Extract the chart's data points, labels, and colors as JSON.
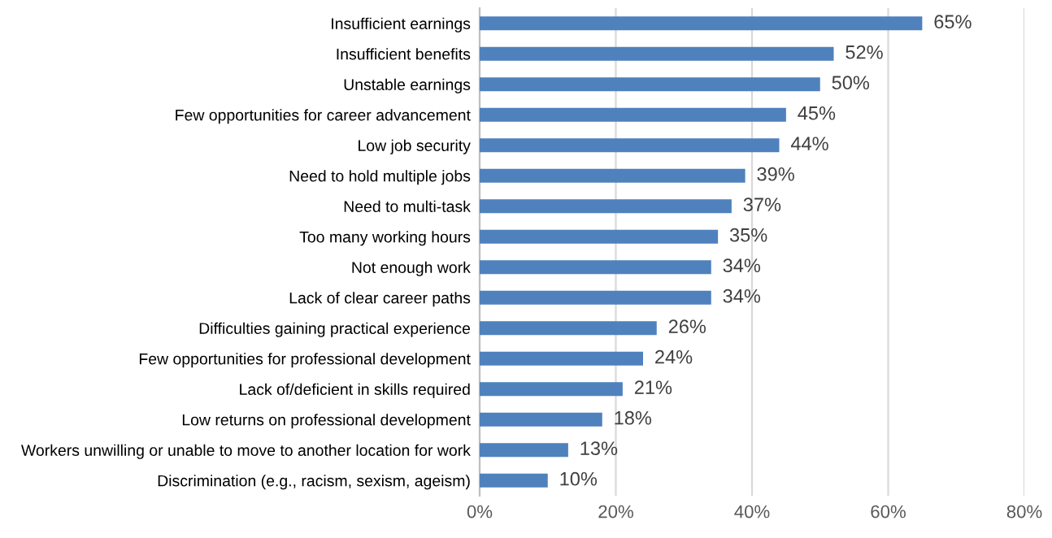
{
  "chart_data": {
    "type": "bar",
    "orientation": "horizontal",
    "categories": [
      "Insufficient earnings",
      "Insufficient benefits",
      "Unstable earnings",
      "Few opportunities for career advancement",
      "Low job security",
      "Need to hold multiple jobs",
      "Need to multi-task",
      "Too many working hours",
      "Not enough work",
      "Lack of clear career paths",
      "Difficulties gaining practical experience",
      "Few opportunities for professional development",
      "Lack of/deficient in skills required",
      "Low returns on professional development",
      "Workers unwilling or unable to move to another location for work",
      "Discrimination (e.g., racism, sexism, ageism)"
    ],
    "values": [
      65,
      52,
      50,
      45,
      44,
      39,
      37,
      35,
      34,
      34,
      26,
      24,
      21,
      18,
      13,
      10
    ],
    "value_labels": [
      "65%",
      "52%",
      "50%",
      "45%",
      "44%",
      "39%",
      "37%",
      "35%",
      "34%",
      "34%",
      "26%",
      "24%",
      "21%",
      "18%",
      "13%",
      "10%"
    ],
    "color": "#4f81bd",
    "xlim": [
      0,
      80
    ],
    "xticks": [
      {
        "value": 0,
        "label": "0%"
      },
      {
        "value": 20,
        "label": "20%"
      },
      {
        "value": 40,
        "label": "40%"
      },
      {
        "value": 60,
        "label": "60%"
      },
      {
        "value": 80,
        "label": "80%"
      }
    ],
    "grid": "x",
    "legend": false
  }
}
